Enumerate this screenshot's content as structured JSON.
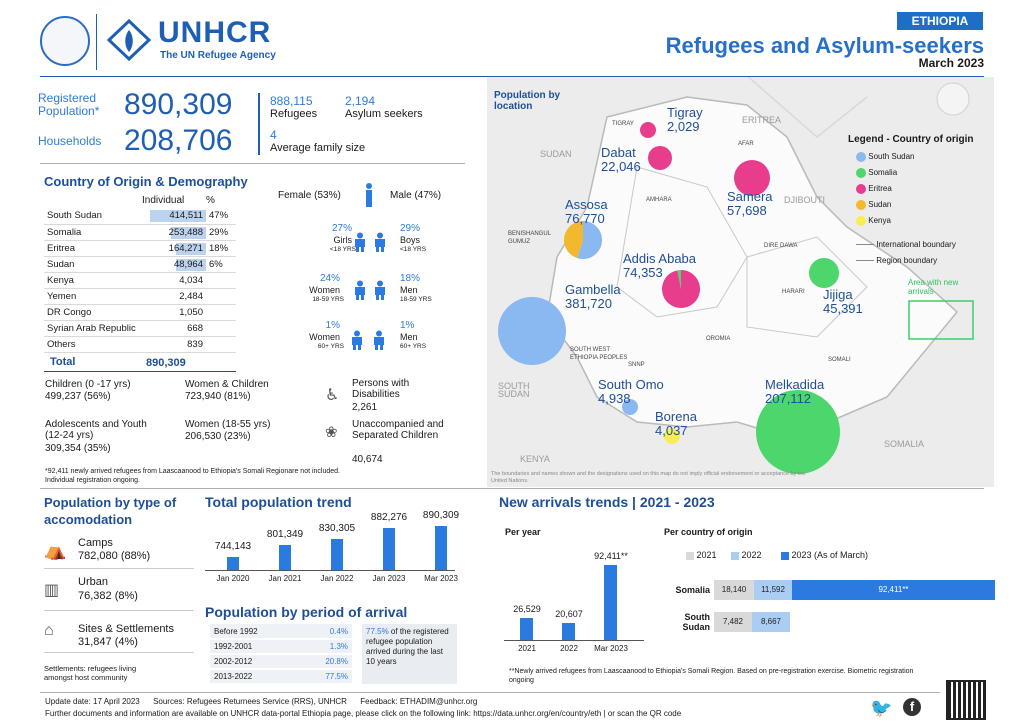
{
  "header": {
    "country_tag": "ETHIOPIA",
    "title": "Refugees and Asylum-seekers",
    "date": "March 2023",
    "org_name": "UNHCR",
    "org_tagline": "The UN Refugee Agency"
  },
  "summary": {
    "registered_label": "Registered Population*",
    "registered_value": "890,309",
    "households_label": "Households",
    "households_value": "208,706",
    "refugees_value": "888,115",
    "refugees_label": "Refugees",
    "asylum_value": "2,194",
    "asylum_label": "Asylum seekers",
    "family_value": "4",
    "family_label": "Average family size"
  },
  "origin": {
    "title": "Country of Origin & Demography",
    "col_individual": "Individual",
    "col_pct": "%",
    "rows": [
      {
        "country": "South Sudan",
        "value": "414,511",
        "pct": "47%",
        "share": 0.47
      },
      {
        "country": "Somalia",
        "value": "253,488",
        "pct": "29%",
        "share": 0.29
      },
      {
        "country": "Eritrea",
        "value": "164,271",
        "pct": "18%",
        "share": 0.18
      },
      {
        "country": "Sudan",
        "value": "48,964",
        "pct": "6%",
        "share": 0.06
      },
      {
        "country": "Kenya",
        "value": "4,034",
        "pct": "",
        "share": 0
      },
      {
        "country": "Yemen",
        "value": "2,484",
        "pct": "",
        "share": 0
      },
      {
        "country": "DR Congo",
        "value": "1,050",
        "pct": "",
        "share": 0
      },
      {
        "country": "Syrian Arab Republic",
        "value": "668",
        "pct": "",
        "share": 0
      },
      {
        "country": "Others",
        "value": "839",
        "pct": "",
        "share": 0
      }
    ],
    "total_label": "Total",
    "total_value": "890,309"
  },
  "demography": {
    "female": "Female (53%)",
    "male": "Male (47%)",
    "girls_pct": "27%",
    "girls_label": "Girls",
    "girls_sub": "<18 YRS",
    "boys_pct": "29%",
    "boys_label": "Boys",
    "boys_sub": "<18 YRS",
    "women_pct": "24%",
    "women_label": "Women",
    "women_sub": "18-59 YRS",
    "men_pct": "18%",
    "men_label": "Men",
    "men_sub": "18-59 YRS",
    "women60_pct": "1%",
    "women60_label": "Women",
    "women60_sub": "60+ YRS",
    "men60_pct": "1%",
    "men60_label": "Men",
    "men60_sub": "60+ YRS"
  },
  "groups": {
    "children_label": "Children (0 -17 yrs)",
    "children_value": "499,237 (56%)",
    "women_children_label": "Women & Children",
    "women_children_value": "723,940 (81%)",
    "pwd_label": "Persons with Disabilities",
    "pwd_value": "2,261",
    "adolescents_label": "Adolescents and Youth (12-24 yrs)",
    "adolescents_value": "309,354 (35%)",
    "women1855_label": "Women (18-55 yrs)",
    "women1855_value": "206,530 (23%)",
    "uasc_label": "Unaccompanied and Separated Children",
    "uasc_value": "40,674",
    "footnote": "*92,411 newly arrived refugees from Laascaanood to Ethiopia's Somali Regionare not included. Individual registration ongoing."
  },
  "accommodation": {
    "title": "Population by type of accomodation",
    "camps_label": "Camps",
    "camps_value": "782,080 (88%)",
    "urban_label": "Urban",
    "urban_value": "76,382 (8%)",
    "sites_label": "Sites & Settlements",
    "sites_value": "31,847 (4%)",
    "note": "Settlements: refugees living amongst host community"
  },
  "trend": {
    "title": "Total population trend",
    "labels": [
      "Jan 2020",
      "Jan 2021",
      "Jan 2022",
      "Jan 2023",
      "Mar 2023"
    ],
    "value_labels": [
      "744,143",
      "801,349",
      "830,305",
      "882,276",
      "890,309"
    ]
  },
  "period": {
    "title": "Population by period of arrival",
    "rows": [
      {
        "label": "Before 1992",
        "value": "0.4%"
      },
      {
        "label": "1992-2001",
        "value": "1.3%"
      },
      {
        "label": "2002-2012",
        "value": "20.8%"
      },
      {
        "label": "2013-2022",
        "value": "77.5%"
      }
    ],
    "note_pct": "77.5%",
    "note_text": "of the registered refugee population arrived during the last 10 years"
  },
  "new_arrivals": {
    "title": "New arrivals trends | 2021 - 2023",
    "per_year_label": "Per year",
    "per_origin_label": "Per country of origin",
    "year_labels": [
      "2021",
      "2022",
      "Mar 2023"
    ],
    "year_value_labels": [
      "26,529",
      "20,607",
      "92,411**"
    ],
    "legend": [
      "2021",
      "2022",
      "2023 (As of March)"
    ],
    "somalia_label": "Somalia",
    "somalia_values": [
      "18,140",
      "11,592",
      "92,411**"
    ],
    "ssudan_label": "South Sudan",
    "ssudan_values": [
      "7,482",
      "8,667"
    ],
    "footnote": "**Newly arrived refugees from Laascaanood to Ethiopia's Somali Region. Based on pre-registration exercise. Biometric registration ongoing"
  },
  "map": {
    "title": "Population by location",
    "legend_title": "Legend - Country of origin",
    "legend_items": [
      "South Sudan",
      "Somalia",
      "Eritrea",
      "Sudan",
      "Kenya"
    ],
    "legend_colors": [
      "#8ab8f0",
      "#4cd66b",
      "#e83c8c",
      "#f2b92e",
      "#f7ee52"
    ],
    "line_items": [
      "International boundary",
      "Region boundary"
    ],
    "new_area": "Area with new arrivals",
    "locations": [
      {
        "name": "Tigray",
        "value": "2,029"
      },
      {
        "name": "Dabat",
        "value": "22,046"
      },
      {
        "name": "Samera",
        "value": "57,698"
      },
      {
        "name": "Assosa",
        "value": "76,770"
      },
      {
        "name": "Addis Ababa",
        "value": "74,353"
      },
      {
        "name": "Gambella",
        "value": "381,720"
      },
      {
        "name": "Jijiga",
        "value": "45,391"
      },
      {
        "name": "South Omo",
        "value": "4,938"
      },
      {
        "name": "Melkadida",
        "value": "207,112"
      },
      {
        "name": "Borena",
        "value": "4,037"
      }
    ],
    "region_labels": [
      "TIGRAY",
      "AFAR",
      "AMHARA",
      "BENISHANGUL GUMUZ",
      "DIRE DAWA",
      "HARARI",
      "OROMIA",
      "SOMALI",
      "SOUTH WEST ETHIOPIA PEOPLES",
      "SNNP",
      "SUDAN",
      "SOUTH SUDAN",
      "KENYA",
      "SOMALIA",
      "ERITREA",
      "DJIBOUTI"
    ],
    "disclaimer": "The boundaries and names shown and the designations used on this map do not imply official endorsement or acceptance by the United Nations."
  },
  "footer": {
    "line1": "Update date: 17 April 2023      Sources: Refugees Returnees Service (RRS), UNHCR      Feedback: ETHADIM@unhcr.org",
    "line2": "Further documents and information are available on UNHCR data-portal Ethiopia page, please click on the following link: https://data.unhcr.org/en/country/eth | or scan the QR code"
  }
}
